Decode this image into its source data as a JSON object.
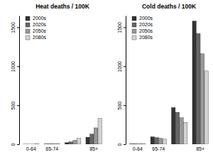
{
  "chart_data": [
    {
      "type": "bar",
      "title": "Heat deaths / 100K",
      "categories": [
        "0-64",
        "65-74",
        null,
        "85+"
      ],
      "series": [
        {
          "name": "2000s",
          "color": "#333333",
          "values": [
            1,
            3,
            20,
            90
          ]
        },
        {
          "name": "2020s",
          "color": "#666666",
          "values": [
            1,
            4,
            30,
            130
          ]
        },
        {
          "name": "2050s",
          "color": "#999999",
          "values": [
            1,
            6,
            50,
            210
          ]
        },
        {
          "name": "2080s",
          "color": "#d3d3d3",
          "values": [
            2,
            8,
            75,
            330
          ]
        }
      ],
      "ylim": [
        0,
        1650
      ],
      "yticks": [
        0,
        500,
        1000,
        1500
      ],
      "legend": "top-left"
    },
    {
      "type": "bar",
      "title": "Cold deaths / 100K",
      "categories": [
        "0-64",
        "65-74",
        null,
        "85+"
      ],
      "series": [
        {
          "name": "2000s",
          "color": "#333333",
          "values": [
            5,
            95,
            470,
            1580
          ]
        },
        {
          "name": "2020s",
          "color": "#666666",
          "values": [
            5,
            85,
            410,
            1420
          ]
        },
        {
          "name": "2050s",
          "color": "#999999",
          "values": [
            4,
            75,
            340,
            1160
          ]
        },
        {
          "name": "2080s",
          "color": "#d3d3d3",
          "values": [
            4,
            65,
            280,
            940
          ]
        }
      ],
      "ylim": [
        0,
        1650
      ],
      "yticks": [
        0,
        500,
        1000,
        1500
      ],
      "legend": "top-left"
    }
  ]
}
